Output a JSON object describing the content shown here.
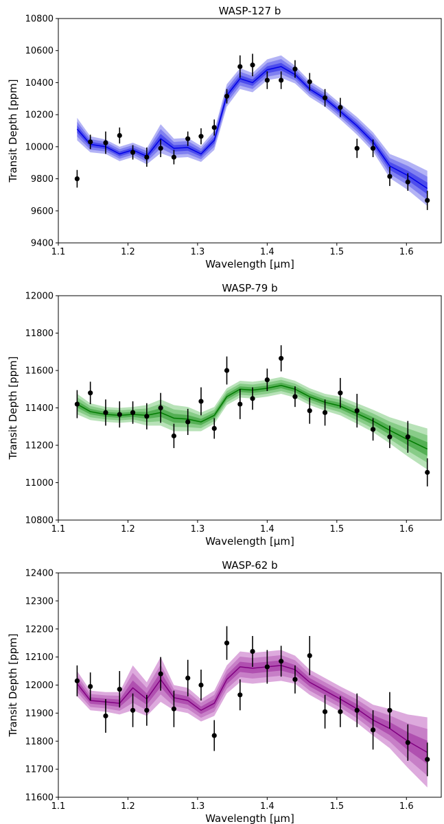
{
  "chart_data": [
    {
      "type": "line",
      "title": "WASP-127 b",
      "xlabel": "Wavelength [μm]",
      "ylabel": "Transit Depth [ppm]",
      "xlim": [
        1.1,
        1.65
      ],
      "ylim": [
        9400,
        10800
      ],
      "xticks": [
        "1.1",
        "1.2",
        "1.3",
        "1.4",
        "1.5",
        "1.6"
      ],
      "yticks": [
        "9400",
        "9600",
        "9800",
        "10000",
        "10200",
        "10400",
        "10600",
        "10800"
      ],
      "grid": false,
      "colors": {
        "line": "#0000e6",
        "band_outer": "#b3b3f5",
        "band_middle": "#8080f0",
        "band_inner": "#4d4dec"
      },
      "x": [
        1.127,
        1.146,
        1.168,
        1.188,
        1.207,
        1.227,
        1.247,
        1.266,
        1.286,
        1.305,
        1.324,
        1.342,
        1.361,
        1.379,
        1.4,
        1.42,
        1.44,
        1.461,
        1.483,
        1.505,
        1.529,
        1.552,
        1.576,
        1.602,
        1.63
      ],
      "model": [
        10110,
        10015,
        10000,
        9955,
        9980,
        9940,
        10050,
        9990,
        9995,
        9955,
        10040,
        10320,
        10425,
        10400,
        10480,
        10500,
        10450,
        10360,
        10300,
        10220,
        10130,
        10030,
        9880,
        9820,
        9740
      ],
      "model_uncertainty": [
        70,
        50,
        45,
        45,
        45,
        50,
        90,
        60,
        60,
        50,
        60,
        70,
        65,
        60,
        65,
        70,
        55,
        50,
        50,
        50,
        55,
        60,
        75,
        90,
        110
      ],
      "observed": [
        9800,
        10030,
        10025,
        10070,
        9965,
        9935,
        9990,
        9935,
        10050,
        10065,
        10120,
        10315,
        10500,
        10510,
        10415,
        10415,
        10485,
        10405,
        10305,
        10245,
        9990,
        9990,
        9815,
        9780,
        9665
      ],
      "observed_error": [
        55,
        45,
        70,
        50,
        45,
        60,
        55,
        45,
        45,
        50,
        50,
        45,
        70,
        70,
        55,
        55,
        55,
        55,
        55,
        60,
        60,
        55,
        60,
        55,
        60
      ]
    },
    {
      "type": "line",
      "title": "WASP-79 b",
      "xlabel": "Wavelength [μm]",
      "ylabel": "Transit Depth [ppm]",
      "xlim": [
        1.1,
        1.65
      ],
      "ylim": [
        10800,
        12000
      ],
      "xticks": [
        "1.1",
        "1.2",
        "1.3",
        "1.4",
        "1.5",
        "1.6"
      ],
      "yticks": [
        "10800",
        "11000",
        "11200",
        "11400",
        "11600",
        "11800",
        "12000"
      ],
      "grid": false,
      "colors": {
        "line": "#007a00",
        "band_outer": "#b8e2b8",
        "band_middle": "#88cc88",
        "band_inner": "#55b055"
      },
      "x": [
        1.127,
        1.146,
        1.168,
        1.188,
        1.207,
        1.227,
        1.247,
        1.266,
        1.286,
        1.305,
        1.324,
        1.342,
        1.361,
        1.379,
        1.4,
        1.42,
        1.44,
        1.461,
        1.483,
        1.505,
        1.529,
        1.552,
        1.576,
        1.602,
        1.63
      ],
      "model": [
        11420,
        11380,
        11365,
        11360,
        11365,
        11360,
        11375,
        11345,
        11340,
        11325,
        11360,
        11460,
        11500,
        11495,
        11505,
        11520,
        11500,
        11460,
        11430,
        11410,
        11370,
        11330,
        11280,
        11230,
        11180
      ],
      "model_uncertainty": [
        55,
        45,
        40,
        40,
        40,
        55,
        70,
        70,
        65,
        50,
        45,
        45,
        45,
        45,
        45,
        45,
        45,
        45,
        45,
        50,
        55,
        60,
        70,
        90,
        110
      ],
      "observed": [
        11420,
        11480,
        11375,
        11365,
        11375,
        11355,
        11400,
        11250,
        11325,
        11435,
        11290,
        11600,
        11420,
        11450,
        11550,
        11665,
        11460,
        11385,
        11375,
        11480,
        11385,
        11285,
        11245,
        11245,
        11055
      ],
      "observed_error": [
        75,
        60,
        70,
        70,
        60,
        70,
        80,
        65,
        70,
        75,
        55,
        75,
        80,
        60,
        60,
        70,
        55,
        70,
        70,
        80,
        90,
        60,
        60,
        85,
        75
      ]
    },
    {
      "type": "line",
      "title": "WASP-62 b",
      "xlabel": "Wavelength [μm]",
      "ylabel": "Transit Depth [ppm]",
      "xlim": [
        1.1,
        1.65
      ],
      "ylim": [
        11600,
        12400
      ],
      "xticks": [
        "1.1",
        "1.2",
        "1.3",
        "1.4",
        "1.5",
        "1.6"
      ],
      "yticks": [
        "11600",
        "11700",
        "11800",
        "11900",
        "12000",
        "12100",
        "12200",
        "12300",
        "12400"
      ],
      "grid": false,
      "colors": {
        "line": "#800080",
        "band_outer": "#ddaadd",
        "band_middle": "#c77fc7",
        "band_inner": "#b050b0"
      },
      "x": [
        1.127,
        1.146,
        1.168,
        1.188,
        1.207,
        1.227,
        1.247,
        1.266,
        1.286,
        1.305,
        1.324,
        1.342,
        1.361,
        1.379,
        1.4,
        1.42,
        1.44,
        1.461,
        1.483,
        1.505,
        1.529,
        1.552,
        1.576,
        1.602,
        1.63
      ],
      "model": [
        12005,
        11945,
        11940,
        11935,
        11990,
        11950,
        12020,
        11955,
        11945,
        11910,
        11935,
        12020,
        12065,
        12060,
        12065,
        12070,
        12055,
        12010,
        11980,
        11950,
        11915,
        11875,
        11845,
        11800,
        11760
      ],
      "model_uncertainty": [
        45,
        35,
        35,
        40,
        80,
        60,
        80,
        45,
        45,
        40,
        45,
        50,
        55,
        55,
        55,
        55,
        50,
        45,
        45,
        45,
        50,
        55,
        70,
        95,
        125
      ],
      "observed": [
        12015,
        11995,
        11890,
        11985,
        11910,
        11910,
        12040,
        11915,
        12025,
        12000,
        11820,
        12150,
        11965,
        12120,
        12065,
        12085,
        12020,
        12105,
        11905,
        11905,
        11910,
        11840,
        11910,
        11795,
        11735
      ],
      "observed_error": [
        55,
        50,
        60,
        65,
        60,
        55,
        60,
        65,
        65,
        55,
        55,
        60,
        55,
        55,
        60,
        55,
        50,
        70,
        60,
        55,
        60,
        70,
        65,
        65,
        60
      ]
    }
  ]
}
